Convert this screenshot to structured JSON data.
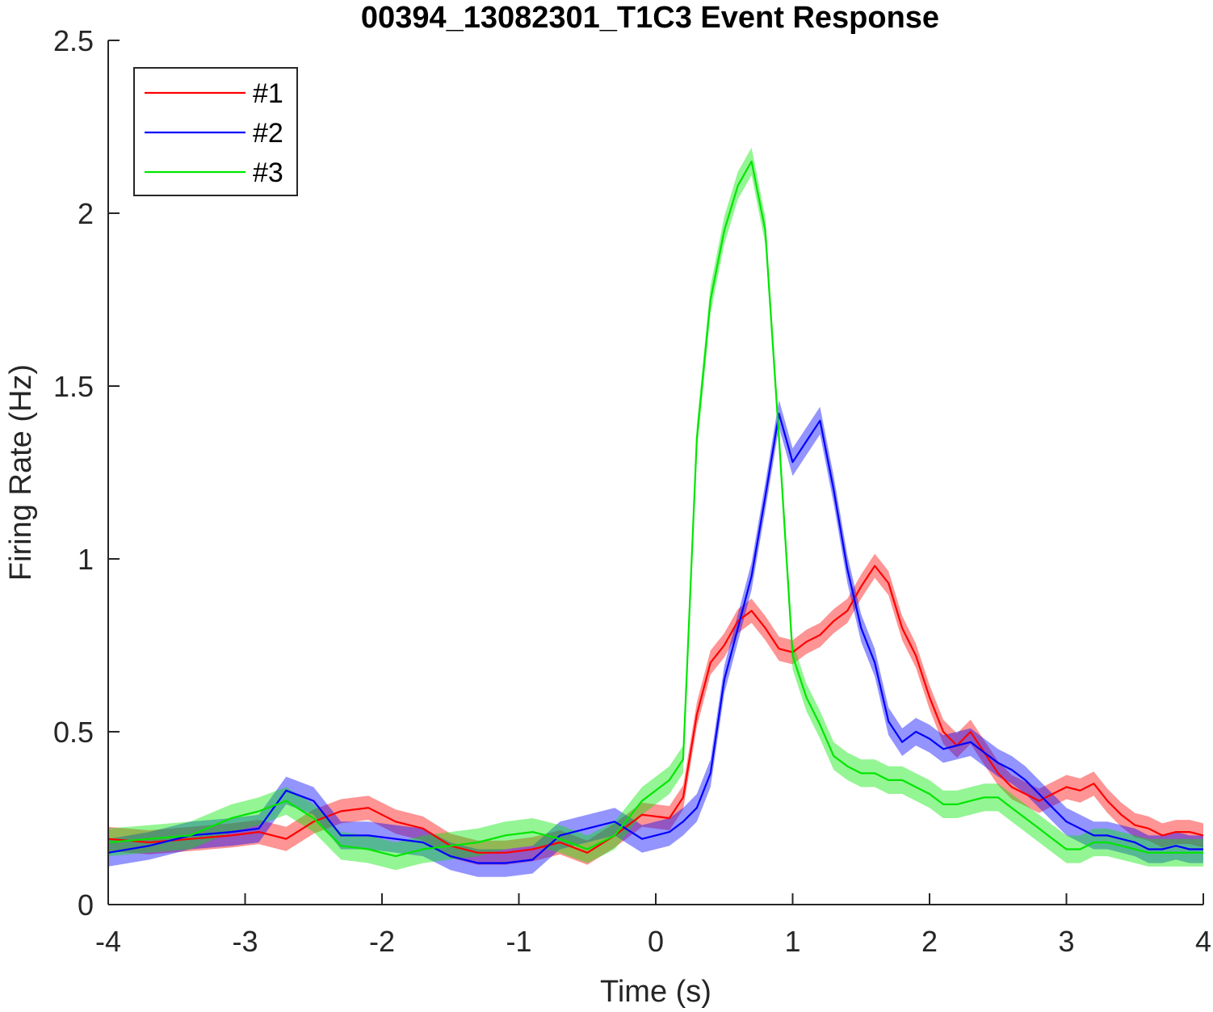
{
  "chart_data": {
    "type": "line",
    "title": "00394_13082301_T1C3 Event Response",
    "xlabel": "Time (s)",
    "ylabel": "Firing Rate (Hz)",
    "xlim": [
      -4,
      4
    ],
    "ylim": [
      0,
      2.5
    ],
    "xticks": [
      -4,
      -3,
      -2,
      -1,
      0,
      1,
      2,
      3,
      4
    ],
    "xtick_labels": [
      "-4",
      "-3",
      "-2",
      "-1",
      "0",
      "1",
      "2",
      "3",
      "4"
    ],
    "yticks": [
      0,
      0.5,
      1,
      1.5,
      2,
      2.5
    ],
    "ytick_labels": [
      "0",
      "0.5",
      "1",
      "1.5",
      "2",
      "2.5"
    ],
    "grid": false,
    "legend_position": "top-left",
    "shaded_error_bands": true,
    "series": [
      {
        "name": "#1",
        "color": "#ff0000",
        "x": [
          -4,
          -3.7,
          -3.4,
          -3.1,
          -2.9,
          -2.7,
          -2.5,
          -2.3,
          -2.1,
          -1.9,
          -1.7,
          -1.5,
          -1.3,
          -1.1,
          -0.9,
          -0.7,
          -0.5,
          -0.3,
          -0.1,
          0.1,
          0.2,
          0.3,
          0.4,
          0.5,
          0.6,
          0.7,
          0.8,
          0.9,
          1.0,
          1.1,
          1.2,
          1.3,
          1.4,
          1.5,
          1.6,
          1.7,
          1.8,
          1.9,
          2.0,
          2.1,
          2.2,
          2.3,
          2.4,
          2.5,
          2.6,
          2.7,
          2.8,
          2.9,
          3.0,
          3.1,
          3.2,
          3.3,
          3.4,
          3.5,
          3.6,
          3.7,
          3.8,
          3.9,
          4.0
        ],
        "y": [
          0.19,
          0.18,
          0.19,
          0.2,
          0.21,
          0.19,
          0.24,
          0.27,
          0.28,
          0.24,
          0.22,
          0.17,
          0.15,
          0.15,
          0.16,
          0.18,
          0.15,
          0.2,
          0.26,
          0.25,
          0.31,
          0.55,
          0.7,
          0.75,
          0.82,
          0.85,
          0.8,
          0.74,
          0.73,
          0.76,
          0.78,
          0.82,
          0.85,
          0.92,
          0.98,
          0.93,
          0.8,
          0.72,
          0.6,
          0.5,
          0.46,
          0.5,
          0.44,
          0.38,
          0.34,
          0.32,
          0.3,
          0.32,
          0.34,
          0.33,
          0.35,
          0.3,
          0.26,
          0.23,
          0.22,
          0.2,
          0.21,
          0.21,
          0.2
        ],
        "err": 0.035
      },
      {
        "name": "#2",
        "color": "#0000ff",
        "x": [
          -4,
          -3.7,
          -3.4,
          -3.1,
          -2.9,
          -2.7,
          -2.5,
          -2.3,
          -2.1,
          -1.9,
          -1.7,
          -1.5,
          -1.3,
          -1.1,
          -0.9,
          -0.7,
          -0.5,
          -0.3,
          -0.1,
          0.1,
          0.2,
          0.3,
          0.4,
          0.5,
          0.6,
          0.7,
          0.8,
          0.9,
          1.0,
          1.1,
          1.2,
          1.3,
          1.4,
          1.5,
          1.6,
          1.7,
          1.8,
          1.9,
          2.0,
          2.1,
          2.2,
          2.3,
          2.4,
          2.5,
          2.6,
          2.7,
          2.8,
          2.9,
          3.0,
          3.1,
          3.2,
          3.3,
          3.4,
          3.5,
          3.6,
          3.7,
          3.8,
          3.9,
          4.0
        ],
        "y": [
          0.15,
          0.17,
          0.2,
          0.21,
          0.22,
          0.33,
          0.3,
          0.2,
          0.2,
          0.19,
          0.18,
          0.14,
          0.12,
          0.12,
          0.13,
          0.2,
          0.22,
          0.24,
          0.19,
          0.21,
          0.24,
          0.28,
          0.38,
          0.65,
          0.8,
          0.95,
          1.18,
          1.42,
          1.28,
          1.34,
          1.4,
          1.2,
          0.97,
          0.8,
          0.7,
          0.53,
          0.47,
          0.5,
          0.48,
          0.45,
          0.46,
          0.47,
          0.44,
          0.41,
          0.39,
          0.36,
          0.32,
          0.28,
          0.24,
          0.22,
          0.2,
          0.2,
          0.19,
          0.18,
          0.16,
          0.16,
          0.17,
          0.16,
          0.16
        ],
        "err": 0.04
      },
      {
        "name": "#3",
        "color": "#00e600",
        "x": [
          -4,
          -3.7,
          -3.4,
          -3.1,
          -2.9,
          -2.7,
          -2.5,
          -2.3,
          -2.1,
          -1.9,
          -1.7,
          -1.5,
          -1.3,
          -1.1,
          -0.9,
          -0.7,
          -0.5,
          -0.3,
          -0.1,
          0.1,
          0.2,
          0.3,
          0.4,
          0.5,
          0.6,
          0.7,
          0.8,
          0.9,
          1.0,
          1.1,
          1.2,
          1.3,
          1.4,
          1.5,
          1.6,
          1.7,
          1.8,
          1.9,
          2.0,
          2.1,
          2.2,
          2.3,
          2.4,
          2.5,
          2.6,
          2.7,
          2.8,
          2.9,
          3.0,
          3.1,
          3.2,
          3.3,
          3.4,
          3.5,
          3.6,
          3.7,
          3.8,
          3.9,
          4.0
        ],
        "y": [
          0.18,
          0.19,
          0.2,
          0.25,
          0.27,
          0.3,
          0.25,
          0.17,
          0.16,
          0.14,
          0.16,
          0.17,
          0.18,
          0.2,
          0.21,
          0.19,
          0.16,
          0.2,
          0.3,
          0.36,
          0.42,
          1.35,
          1.75,
          1.95,
          2.08,
          2.15,
          1.95,
          1.35,
          0.72,
          0.6,
          0.52,
          0.43,
          0.4,
          0.38,
          0.38,
          0.36,
          0.36,
          0.34,
          0.32,
          0.29,
          0.29,
          0.3,
          0.31,
          0.31,
          0.28,
          0.25,
          0.22,
          0.19,
          0.16,
          0.16,
          0.18,
          0.18,
          0.17,
          0.16,
          0.15,
          0.15,
          0.15,
          0.15,
          0.15
        ],
        "err": 0.04
      }
    ]
  }
}
